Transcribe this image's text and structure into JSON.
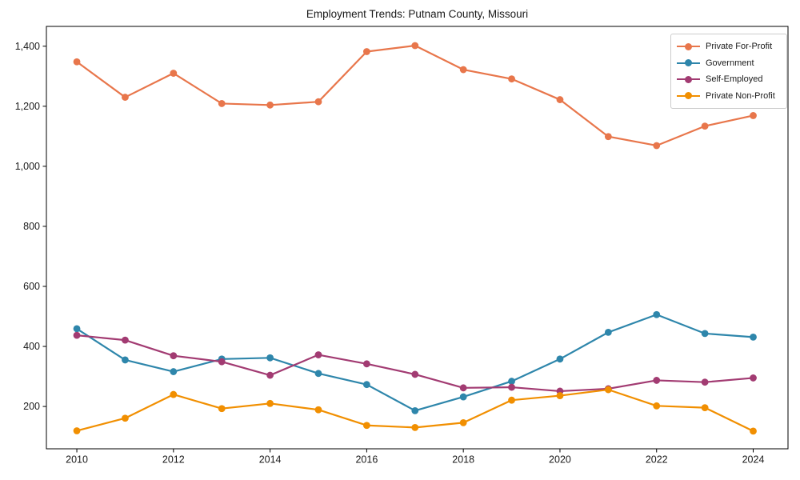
{
  "title": "Employment Trends: Putnam County, Missouri",
  "chart_data": {
    "type": "line",
    "title": "Employment Trends: Putnam County, Missouri",
    "xlabel": "",
    "ylabel": "",
    "grid": false,
    "legend_position": "upper right",
    "marker": "circle",
    "x": [
      2010,
      2011,
      2012,
      2013,
      2014,
      2015,
      2016,
      2017,
      2018,
      2019,
      2020,
      2021,
      2022,
      2023,
      2024
    ],
    "series": [
      {
        "name": "Private For-Profit",
        "color": "#E8764B",
        "values": [
          1348,
          1230,
          1310,
          1209,
          1204,
          1215,
          1382,
          1402,
          1322,
          1291,
          1222,
          1099,
          1069,
          1134,
          1169
        ]
      },
      {
        "name": "Government",
        "color": "#2E86AB",
        "values": [
          459,
          355,
          316,
          358,
          362,
          310,
          273,
          186,
          232,
          284,
          358,
          447,
          506,
          443,
          431
        ]
      },
      {
        "name": "Self-Employed",
        "color": "#A23B72",
        "values": [
          437,
          421,
          369,
          349,
          304,
          372,
          342,
          307,
          262,
          264,
          251,
          259,
          287,
          281,
          295
        ]
      },
      {
        "name": "Private Non-Profit",
        "color": "#F18F01",
        "values": [
          119,
          161,
          240,
          193,
          210,
          189,
          137,
          130,
          146,
          221,
          236,
          256,
          202,
          196,
          118
        ]
      }
    ],
    "xlim": [
      2009.37,
      2024.72
    ],
    "ylim": [
      59,
      1466
    ],
    "x_ticks": [
      2010,
      2012,
      2014,
      2016,
      2018,
      2020,
      2022,
      2024
    ],
    "y_ticks": [
      {
        "value": 200,
        "label": "200"
      },
      {
        "value": 400,
        "label": "400"
      },
      {
        "value": 600,
        "label": "600"
      },
      {
        "value": 800,
        "label": "800"
      },
      {
        "value": 1000,
        "label": "1,000"
      },
      {
        "value": 1200,
        "label": "1,200"
      },
      {
        "value": 1400,
        "label": "1,400"
      }
    ]
  }
}
